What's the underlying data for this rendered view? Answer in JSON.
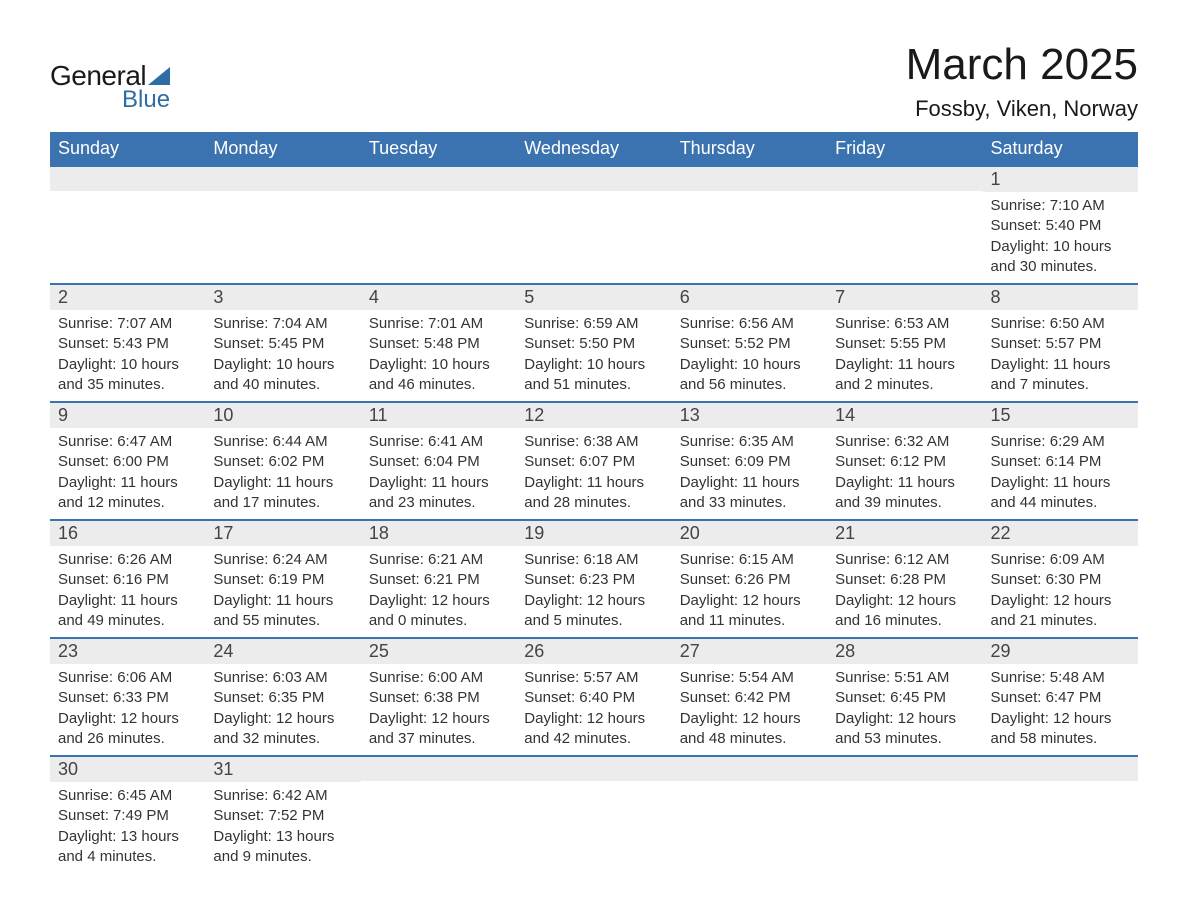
{
  "logo": {
    "text_general": "General",
    "text_blue": "Blue",
    "triangle_color": "#2e6da4"
  },
  "title": "March 2025",
  "location": "Fossby, Viken, Norway",
  "colors": {
    "header_bg": "#3b72b0",
    "header_text": "#ffffff",
    "row_divider": "#3b72b0",
    "daynum_bg": "#ececec",
    "body_text": "#333333",
    "page_bg": "#ffffff"
  },
  "fonts": {
    "title_pt": 44,
    "location_pt": 22,
    "dayhead_pt": 18,
    "daynum_pt": 18,
    "body_pt": 15
  },
  "day_headers": [
    "Sunday",
    "Monday",
    "Tuesday",
    "Wednesday",
    "Thursday",
    "Friday",
    "Saturday"
  ],
  "weeks": [
    [
      null,
      null,
      null,
      null,
      null,
      null,
      {
        "n": "1",
        "sunrise": "Sunrise: 7:10 AM",
        "sunset": "Sunset: 5:40 PM",
        "day1": "Daylight: 10 hours",
        "day2": "and 30 minutes."
      }
    ],
    [
      {
        "n": "2",
        "sunrise": "Sunrise: 7:07 AM",
        "sunset": "Sunset: 5:43 PM",
        "day1": "Daylight: 10 hours",
        "day2": "and 35 minutes."
      },
      {
        "n": "3",
        "sunrise": "Sunrise: 7:04 AM",
        "sunset": "Sunset: 5:45 PM",
        "day1": "Daylight: 10 hours",
        "day2": "and 40 minutes."
      },
      {
        "n": "4",
        "sunrise": "Sunrise: 7:01 AM",
        "sunset": "Sunset: 5:48 PM",
        "day1": "Daylight: 10 hours",
        "day2": "and 46 minutes."
      },
      {
        "n": "5",
        "sunrise": "Sunrise: 6:59 AM",
        "sunset": "Sunset: 5:50 PM",
        "day1": "Daylight: 10 hours",
        "day2": "and 51 minutes."
      },
      {
        "n": "6",
        "sunrise": "Sunrise: 6:56 AM",
        "sunset": "Sunset: 5:52 PM",
        "day1": "Daylight: 10 hours",
        "day2": "and 56 minutes."
      },
      {
        "n": "7",
        "sunrise": "Sunrise: 6:53 AM",
        "sunset": "Sunset: 5:55 PM",
        "day1": "Daylight: 11 hours",
        "day2": "and 2 minutes."
      },
      {
        "n": "8",
        "sunrise": "Sunrise: 6:50 AM",
        "sunset": "Sunset: 5:57 PM",
        "day1": "Daylight: 11 hours",
        "day2": "and 7 minutes."
      }
    ],
    [
      {
        "n": "9",
        "sunrise": "Sunrise: 6:47 AM",
        "sunset": "Sunset: 6:00 PM",
        "day1": "Daylight: 11 hours",
        "day2": "and 12 minutes."
      },
      {
        "n": "10",
        "sunrise": "Sunrise: 6:44 AM",
        "sunset": "Sunset: 6:02 PM",
        "day1": "Daylight: 11 hours",
        "day2": "and 17 minutes."
      },
      {
        "n": "11",
        "sunrise": "Sunrise: 6:41 AM",
        "sunset": "Sunset: 6:04 PM",
        "day1": "Daylight: 11 hours",
        "day2": "and 23 minutes."
      },
      {
        "n": "12",
        "sunrise": "Sunrise: 6:38 AM",
        "sunset": "Sunset: 6:07 PM",
        "day1": "Daylight: 11 hours",
        "day2": "and 28 minutes."
      },
      {
        "n": "13",
        "sunrise": "Sunrise: 6:35 AM",
        "sunset": "Sunset: 6:09 PM",
        "day1": "Daylight: 11 hours",
        "day2": "and 33 minutes."
      },
      {
        "n": "14",
        "sunrise": "Sunrise: 6:32 AM",
        "sunset": "Sunset: 6:12 PM",
        "day1": "Daylight: 11 hours",
        "day2": "and 39 minutes."
      },
      {
        "n": "15",
        "sunrise": "Sunrise: 6:29 AM",
        "sunset": "Sunset: 6:14 PM",
        "day1": "Daylight: 11 hours",
        "day2": "and 44 minutes."
      }
    ],
    [
      {
        "n": "16",
        "sunrise": "Sunrise: 6:26 AM",
        "sunset": "Sunset: 6:16 PM",
        "day1": "Daylight: 11 hours",
        "day2": "and 49 minutes."
      },
      {
        "n": "17",
        "sunrise": "Sunrise: 6:24 AM",
        "sunset": "Sunset: 6:19 PM",
        "day1": "Daylight: 11 hours",
        "day2": "and 55 minutes."
      },
      {
        "n": "18",
        "sunrise": "Sunrise: 6:21 AM",
        "sunset": "Sunset: 6:21 PM",
        "day1": "Daylight: 12 hours",
        "day2": "and 0 minutes."
      },
      {
        "n": "19",
        "sunrise": "Sunrise: 6:18 AM",
        "sunset": "Sunset: 6:23 PM",
        "day1": "Daylight: 12 hours",
        "day2": "and 5 minutes."
      },
      {
        "n": "20",
        "sunrise": "Sunrise: 6:15 AM",
        "sunset": "Sunset: 6:26 PM",
        "day1": "Daylight: 12 hours",
        "day2": "and 11 minutes."
      },
      {
        "n": "21",
        "sunrise": "Sunrise: 6:12 AM",
        "sunset": "Sunset: 6:28 PM",
        "day1": "Daylight: 12 hours",
        "day2": "and 16 minutes."
      },
      {
        "n": "22",
        "sunrise": "Sunrise: 6:09 AM",
        "sunset": "Sunset: 6:30 PM",
        "day1": "Daylight: 12 hours",
        "day2": "and 21 minutes."
      }
    ],
    [
      {
        "n": "23",
        "sunrise": "Sunrise: 6:06 AM",
        "sunset": "Sunset: 6:33 PM",
        "day1": "Daylight: 12 hours",
        "day2": "and 26 minutes."
      },
      {
        "n": "24",
        "sunrise": "Sunrise: 6:03 AM",
        "sunset": "Sunset: 6:35 PM",
        "day1": "Daylight: 12 hours",
        "day2": "and 32 minutes."
      },
      {
        "n": "25",
        "sunrise": "Sunrise: 6:00 AM",
        "sunset": "Sunset: 6:38 PM",
        "day1": "Daylight: 12 hours",
        "day2": "and 37 minutes."
      },
      {
        "n": "26",
        "sunrise": "Sunrise: 5:57 AM",
        "sunset": "Sunset: 6:40 PM",
        "day1": "Daylight: 12 hours",
        "day2": "and 42 minutes."
      },
      {
        "n": "27",
        "sunrise": "Sunrise: 5:54 AM",
        "sunset": "Sunset: 6:42 PM",
        "day1": "Daylight: 12 hours",
        "day2": "and 48 minutes."
      },
      {
        "n": "28",
        "sunrise": "Sunrise: 5:51 AM",
        "sunset": "Sunset: 6:45 PM",
        "day1": "Daylight: 12 hours",
        "day2": "and 53 minutes."
      },
      {
        "n": "29",
        "sunrise": "Sunrise: 5:48 AM",
        "sunset": "Sunset: 6:47 PM",
        "day1": "Daylight: 12 hours",
        "day2": "and 58 minutes."
      }
    ],
    [
      {
        "n": "30",
        "sunrise": "Sunrise: 6:45 AM",
        "sunset": "Sunset: 7:49 PM",
        "day1": "Daylight: 13 hours",
        "day2": "and 4 minutes."
      },
      {
        "n": "31",
        "sunrise": "Sunrise: 6:42 AM",
        "sunset": "Sunset: 7:52 PM",
        "day1": "Daylight: 13 hours",
        "day2": "and 9 minutes."
      },
      null,
      null,
      null,
      null,
      null
    ]
  ]
}
